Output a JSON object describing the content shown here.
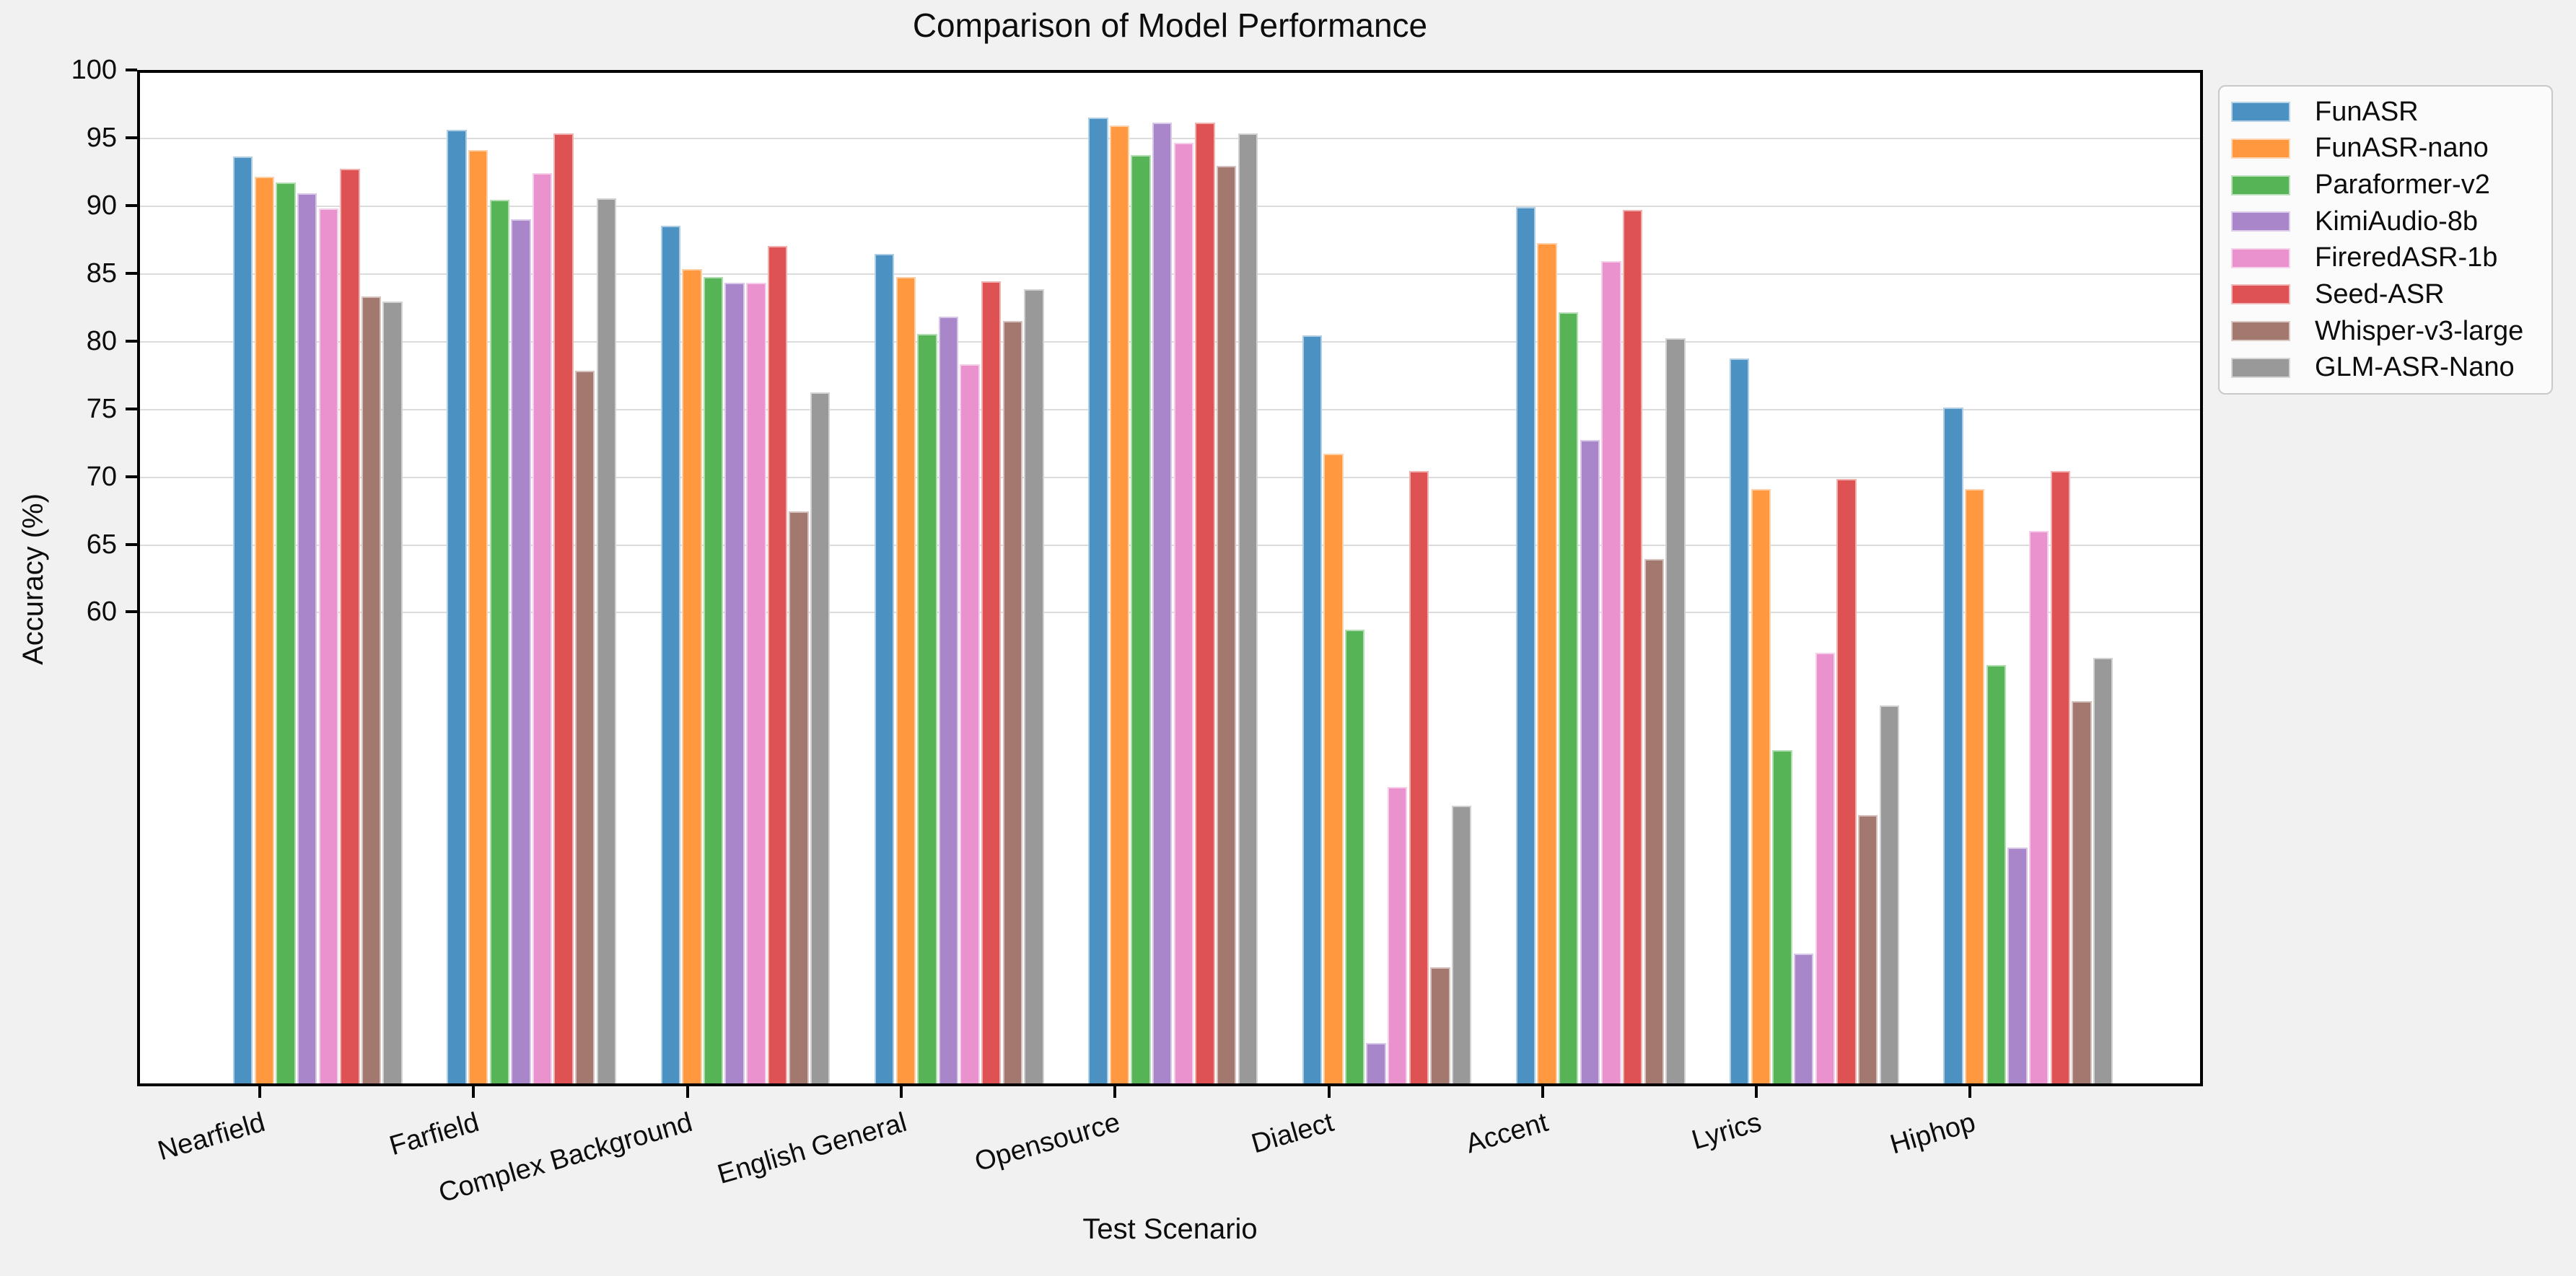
{
  "title": "Comparison of Model Performance",
  "x_axis_label": "Test Scenario",
  "y_axis_label": "Accuracy (%)",
  "chart_data": {
    "type": "bar",
    "title": "Comparison of Model Performance",
    "xlabel": "Test Scenario",
    "ylabel": "Accuracy (%)",
    "ylim": [
      25,
      100
    ],
    "y_ticks": [
      100,
      95,
      90,
      85,
      80,
      75,
      70,
      65,
      60
    ],
    "grid": "horizontal, light gray, at labeled ticks only",
    "legend_position": "outside top-right",
    "categories": [
      "Nearfield",
      "Farfield",
      "Complex Background",
      "English General",
      "Opensource",
      "Dialect",
      "Accent",
      "Lyrics",
      "Hiphop"
    ],
    "series": [
      {
        "name": "FunASR",
        "color": "#4B92C3",
        "values": [
          93.6,
          95.6,
          88.5,
          86.4,
          96.5,
          80.4,
          89.9,
          78.7,
          75.1
        ]
      },
      {
        "name": "FunASR-nano",
        "color": "#FF983E",
        "values": [
          92.1,
          94.1,
          85.3,
          84.7,
          95.9,
          71.7,
          87.2,
          69.1,
          69.1
        ]
      },
      {
        "name": "Paraformer-v2",
        "color": "#56B356",
        "values": [
          91.7,
          90.4,
          84.7,
          80.5,
          93.7,
          58.7,
          82.1,
          49.8,
          56.1
        ]
      },
      {
        "name": "KimiAudio-8b",
        "color": "#A985CA",
        "values": [
          90.9,
          89.0,
          84.3,
          81.8,
          96.1,
          28.2,
          72.7,
          34.8,
          42.6
        ]
      },
      {
        "name": "FireredASR-1b",
        "color": "#E992CE",
        "values": [
          89.8,
          92.4,
          84.3,
          78.3,
          94.6,
          47.1,
          85.9,
          57.0,
          66.0
        ]
      },
      {
        "name": "Seed-ASR",
        "color": "#DE5253",
        "values": [
          92.7,
          95.3,
          87.0,
          84.4,
          96.1,
          70.4,
          89.7,
          69.8,
          70.4
        ]
      },
      {
        "name": "Whisper-v3-large",
        "color": "#A3786F",
        "values": [
          83.3,
          77.8,
          67.4,
          81.5,
          92.9,
          33.8,
          63.9,
          45.0,
          53.4
        ]
      },
      {
        "name": "GLM-ASR-Nano",
        "color": "#999999",
        "values": [
          82.9,
          90.5,
          76.2,
          83.8,
          95.3,
          45.7,
          80.2,
          53.1,
          56.6
        ]
      }
    ]
  }
}
